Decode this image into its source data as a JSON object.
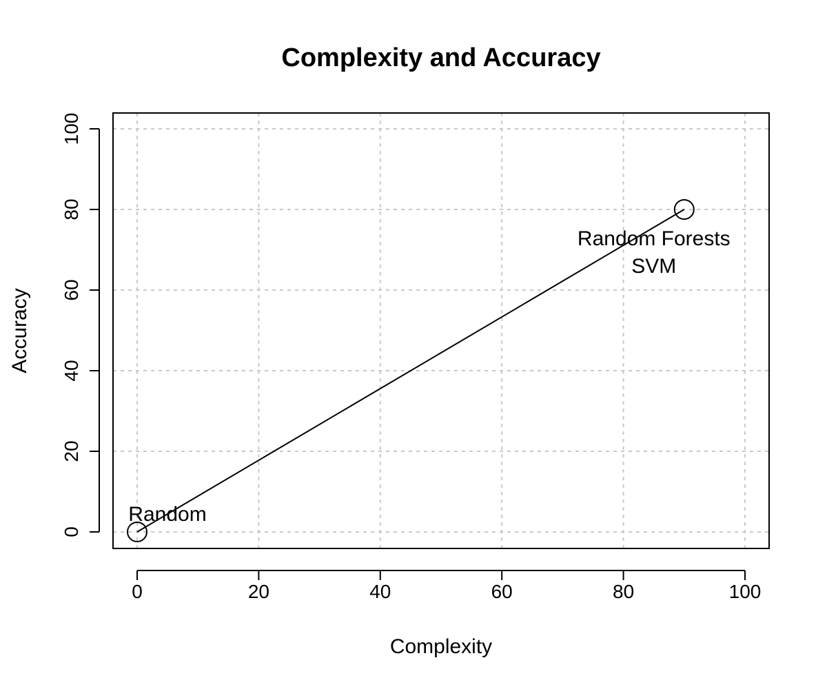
{
  "chart_data": {
    "type": "scatter",
    "title": "Complexity and Accuracy",
    "xlabel": "Complexity",
    "ylabel": "Accuracy",
    "xlim": [
      0,
      100
    ],
    "ylim": [
      0,
      100
    ],
    "xticks": [
      0,
      20,
      40,
      60,
      80,
      100
    ],
    "yticks": [
      0,
      20,
      40,
      60,
      80,
      100
    ],
    "grid": true,
    "series": [
      {
        "x": [
          0,
          90
        ],
        "y": [
          0,
          80
        ],
        "labels": [
          "Random",
          "Random Forests\nSVM"
        ]
      }
    ]
  }
}
